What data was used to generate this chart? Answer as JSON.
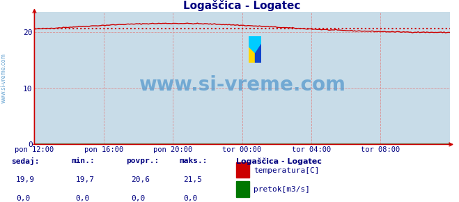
{
  "title": "Logaščica - Logatec",
  "title_color": "#000080",
  "bg_color": "#c8dce8",
  "plot_bg_color": "#c8dce8",
  "footer_bg": "#ffffff",
  "grid_color": "#dd8888",
  "xlim": [
    0,
    288
  ],
  "ylim": [
    0,
    23.5
  ],
  "yticks": [
    0,
    10,
    20
  ],
  "xtick_labels": [
    "pon 12:00",
    "pon 16:00",
    "pon 20:00",
    "tor 00:00",
    "tor 04:00",
    "tor 08:00"
  ],
  "xtick_positions": [
    0,
    48,
    96,
    144,
    192,
    240
  ],
  "temp_color": "#cc0000",
  "flow_color": "#007700",
  "avg_line_color": "#cc0000",
  "avg_value": 20.6,
  "watermark_text": "www.si-vreme.com",
  "watermark_color": "#5599cc",
  "watermark_fontsize": 20,
  "left_label": "www.si-vreme.com",
  "left_label_color": "#5599cc",
  "legend_title": "Logaščica - Logatec",
  "legend_title_color": "#000080",
  "legend_items": [
    "temperatura[C]",
    "pretok[m3/s]"
  ],
  "legend_colors": [
    "#cc0000",
    "#007700"
  ],
  "stats_headers": [
    "sedaj:",
    "min.:",
    "povpr.:",
    "maks.:"
  ],
  "stats_temp": [
    "19,9",
    "19,7",
    "20,6",
    "21,5"
  ],
  "stats_flow": [
    "0,0",
    "0,0",
    "0,0",
    "0,0"
  ],
  "stats_color": "#000080",
  "arrow_color": "#cc0000",
  "tick_color": "#000080"
}
